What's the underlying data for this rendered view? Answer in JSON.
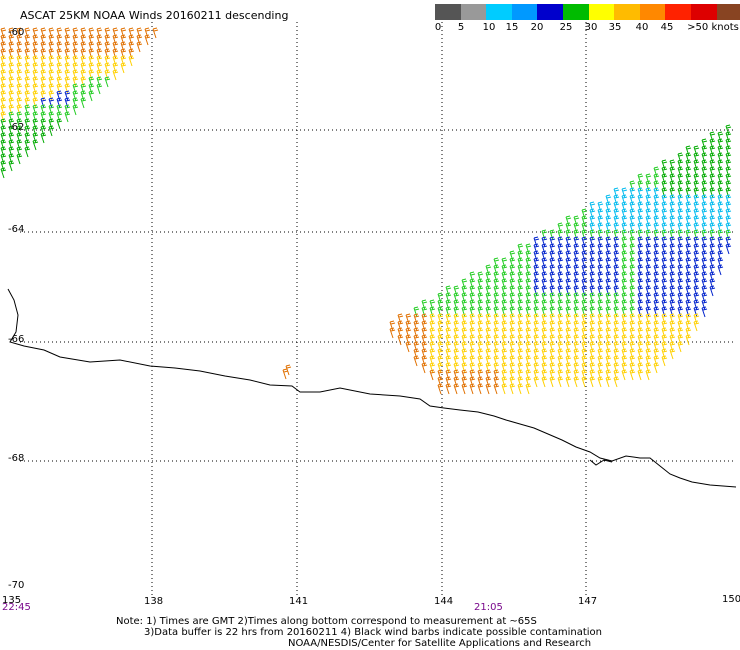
{
  "title": "ASCAT 25KM NOAA Winds 20160211 descending",
  "colorbar": {
    "swatches": [
      "#555555",
      "#999999",
      "#00ccff",
      "#0099ff",
      "#0000cc",
      "#00bb00",
      "#ffff00",
      "#ffbb00",
      "#ff8800",
      "#ff2200",
      "#dd0000",
      "#884422",
      "#ff77ff",
      "#cc00cc",
      "#6600aa"
    ],
    "labels": [
      "0",
      "5",
      "10",
      "15",
      "20",
      "25",
      "30",
      "35",
      "40",
      "45",
      ">50 knots"
    ]
  },
  "lat_labels": [
    "-60",
    "-62",
    "-64",
    "-66",
    "-68",
    "-70"
  ],
  "lon_labels": [
    "135",
    "138",
    "141",
    "144",
    "147",
    "150"
  ],
  "times": {
    "start": "22:45",
    "mid": "21:05"
  },
  "notes": {
    "line1": "Note: 1) Times are GMT 2)Times along bottom correspond to measurement at ~65S",
    "line2": "3)Data buffer is 22 hrs from 20160211 4) Black wind barbs indicate possible contamination",
    "line3": "NOAA/NESDIS/Center for Satellite Applications and Research"
  },
  "colors": {
    "coast": "#000000",
    "grid": "#000000",
    "time_text": "#7a0a8c"
  }
}
